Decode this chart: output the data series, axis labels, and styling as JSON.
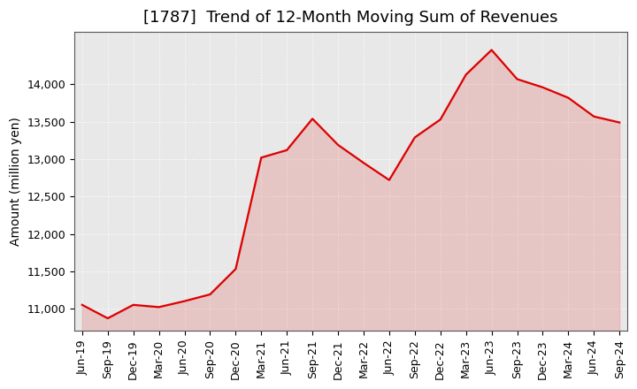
{
  "title": "[1787]  Trend of 12-Month Moving Sum of Revenues",
  "ylabel": "Amount (million yen)",
  "line_color": "#dd0000",
  "fill_color": "#dd0000",
  "fill_alpha": 0.15,
  "background_color": "#ffffff",
  "plot_bg_color": "#e8e8e8",
  "grid_color": "#ffffff",
  "x_labels": [
    "Jun-19",
    "Sep-19",
    "Dec-19",
    "Mar-20",
    "Jun-20",
    "Sep-20",
    "Dec-20",
    "Mar-21",
    "Jun-21",
    "Sep-21",
    "Dec-21",
    "Mar-22",
    "Jun-22",
    "Sep-22",
    "Dec-22",
    "Mar-23",
    "Jun-23",
    "Sep-23",
    "Dec-23",
    "Mar-24",
    "Jun-24",
    "Sep-24"
  ],
  "values": [
    11050,
    10870,
    11050,
    11020,
    11100,
    11190,
    11530,
    13020,
    13120,
    13540,
    13190,
    12950,
    12720,
    13290,
    13530,
    14130,
    14460,
    14070,
    13960,
    13820,
    13570,
    13490
  ],
  "ylim": [
    10700,
    14700
  ],
  "yticks": [
    11000,
    11500,
    12000,
    12500,
    13000,
    13500,
    14000
  ],
  "title_fontsize": 13,
  "axis_fontsize": 10,
  "tick_fontsize": 9
}
